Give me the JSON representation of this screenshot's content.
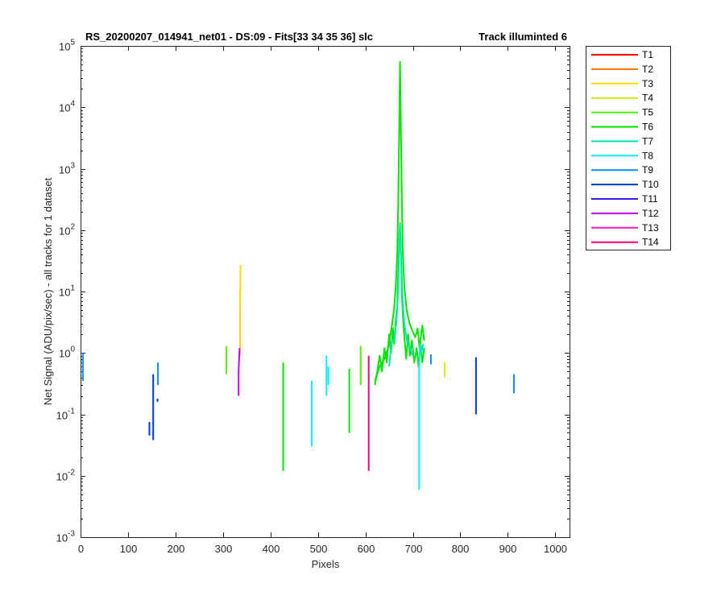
{
  "chart_data": {
    "type": "line",
    "title": "RS_20200207_014941_net01 - DS:09 - Fits[33  34  35  36]   slc",
    "title_right": "Track illuminted 6",
    "xlabel": "Pixels",
    "ylabel": "Net Signal (ADU/pix/sec) - all tracks for 1 dataset",
    "xlim": [
      0,
      1030
    ],
    "ylim": [
      0.001,
      100000
    ],
    "y_scale": "log",
    "x_ticks": [
      0,
      100,
      200,
      300,
      400,
      500,
      600,
      700,
      800,
      900,
      1000
    ],
    "y_ticks": [
      {
        "base": "10",
        "exp": "-3",
        "value": 0.001
      },
      {
        "base": "10",
        "exp": "-2",
        "value": 0.01
      },
      {
        "base": "10",
        "exp": "-1",
        "value": 0.1
      },
      {
        "base": "10",
        "exp": "0",
        "value": 1
      },
      {
        "base": "10",
        "exp": "1",
        "value": 10
      },
      {
        "base": "10",
        "exp": "2",
        "value": 100
      },
      {
        "base": "10",
        "exp": "3",
        "value": 1000
      },
      {
        "base": "10",
        "exp": "4",
        "value": 10000
      },
      {
        "base": "10",
        "exp": "5",
        "value": 100000
      }
    ],
    "grid": false,
    "legend_position": "outside-right",
    "series": [
      {
        "name": "T1",
        "color": "#ff0000",
        "segments": []
      },
      {
        "name": "T2",
        "color": "#ff6f00",
        "segments": []
      },
      {
        "name": "T3",
        "color": "#ffd700",
        "segments": [
          [
            [
              336,
              0.9
            ],
            [
              336,
              5
            ],
            [
              337,
              27
            ]
          ]
        ]
      },
      {
        "name": "T4",
        "color": "#c8f000",
        "segments": [
          [
            [
              767,
              0.4
            ],
            [
              767,
              0.7
            ]
          ]
        ]
      },
      {
        "name": "T5",
        "color": "#55f000",
        "segments": [
          [
            [
              307,
              0.45
            ],
            [
              307,
              1.3
            ]
          ],
          [
            [
              590,
              0.3
            ],
            [
              590,
              1.3
            ]
          ]
        ]
      },
      {
        "name": "T6",
        "color": "#00e600",
        "segments": [
          [
            [
              427,
              0.012
            ],
            [
              427,
              0.7
            ]
          ],
          [
            [
              566,
              0.05
            ],
            [
              566,
              0.55
            ]
          ],
          [
            [
              620,
              0.35
            ],
            [
              630,
              0.6
            ],
            [
              640,
              0.8
            ],
            [
              648,
              1.2
            ],
            [
              655,
              2.5
            ],
            [
              660,
              5
            ],
            [
              664,
              12
            ],
            [
              667,
              40
            ],
            [
              669,
              250
            ],
            [
              671,
              3000
            ],
            [
              673,
              55000
            ],
            [
              675,
              3000
            ],
            [
              677,
              250
            ],
            [
              679,
              40
            ],
            [
              682,
              12
            ],
            [
              687,
              5
            ],
            [
              693,
              3
            ],
            [
              700,
              2.2
            ],
            [
              705,
              1.8
            ],
            [
              710,
              2.5
            ],
            [
              714,
              1.2
            ],
            [
              718,
              2.2
            ],
            [
              720,
              2.8
            ],
            [
              724,
              1.6
            ]
          ],
          [
            [
              620,
              0.3
            ],
            [
              625,
              0.5
            ],
            [
              630,
              0.9
            ],
            [
              635,
              0.5
            ],
            [
              640,
              1.2
            ],
            [
              645,
              0.7
            ],
            [
              650,
              2
            ],
            [
              654,
              1
            ],
            [
              658,
              2.5
            ],
            [
              661,
              1.4
            ],
            [
              664,
              3.5
            ],
            [
              667,
              6
            ],
            [
              669,
              20
            ],
            [
              671,
              60
            ],
            [
              673,
              130
            ],
            [
              675,
              40
            ],
            [
              677,
              8
            ],
            [
              680,
              3
            ],
            [
              683,
              1.5
            ],
            [
              686,
              0.8
            ],
            [
              690,
              2
            ],
            [
              694,
              0.9
            ],
            [
              698,
              1.6
            ],
            [
              703,
              0.7
            ],
            [
              708,
              1.2
            ],
            [
              712,
              0.6
            ],
            [
              716,
              1.4
            ],
            [
              720,
              0.7
            ],
            [
              724,
              1.2
            ]
          ]
        ]
      },
      {
        "name": "T7",
        "color": "#00e6b4",
        "segments": [
          [
            [
              650,
              0.6
            ],
            [
              655,
              1.5
            ],
            [
              660,
              1.5
            ],
            [
              665,
              3
            ],
            [
              669,
              10
            ],
            [
              671,
              50
            ],
            [
              673,
              120
            ],
            [
              675,
              40
            ],
            [
              678,
              8
            ],
            [
              682,
              3
            ],
            [
              688,
              1.5
            ],
            [
              694,
              1.2
            ],
            [
              700,
              0.9
            ]
          ],
          [
            [
              716,
              1.2
            ],
            [
              718,
              1
            ],
            [
              722,
              1.4
            ]
          ]
        ]
      },
      {
        "name": "T8",
        "color": "#00f0ff",
        "segments": [
          [
            [
              487,
              0.03
            ],
            [
              487,
              0.35
            ]
          ],
          [
            [
              518,
              0.2
            ],
            [
              518,
              0.9
            ]
          ],
          [
            [
              522,
              0.3
            ],
            [
              522,
              0.6
            ]
          ],
          [
            [
              713,
              0.006
            ],
            [
              713,
              0.5
            ],
            [
              715,
              1.4
            ]
          ]
        ]
      },
      {
        "name": "T9",
        "color": "#0090ff",
        "segments": [
          [
            [
              5,
              0.35
            ],
            [
              5,
              1
            ]
          ],
          [
            [
              163,
              0.3
            ],
            [
              163,
              0.7
            ]
          ],
          [
            [
              738,
              0.65
            ],
            [
              738,
              0.95
            ]
          ],
          [
            [
              913,
              0.22
            ],
            [
              913,
              0.45
            ]
          ]
        ]
      },
      {
        "name": "T10",
        "color": "#0038dc",
        "segments": [
          [
            [
              145,
              0.045
            ],
            [
              145,
              0.075
            ]
          ],
          [
            [
              153,
              0.038
            ],
            [
              153,
              0.45
            ]
          ],
          [
            [
              162,
              0.16
            ],
            [
              162,
              0.18
            ]
          ],
          [
            [
              833,
              0.1
            ],
            [
              833,
              0.85
            ]
          ]
        ]
      },
      {
        "name": "T11",
        "color": "#3c14e6",
        "segments": []
      },
      {
        "name": "T12",
        "color": "#c800ff",
        "segments": [
          [
            [
              333,
              0.2
            ],
            [
              333,
              0.5
            ],
            [
              335,
              1.2
            ]
          ]
        ]
      },
      {
        "name": "T13",
        "color": "#ff14c8",
        "segments": []
      },
      {
        "name": "T14",
        "color": "#ff0080",
        "segments": [
          [
            [
              607,
              0.012
            ],
            [
              607,
              0.9
            ]
          ]
        ]
      }
    ]
  }
}
